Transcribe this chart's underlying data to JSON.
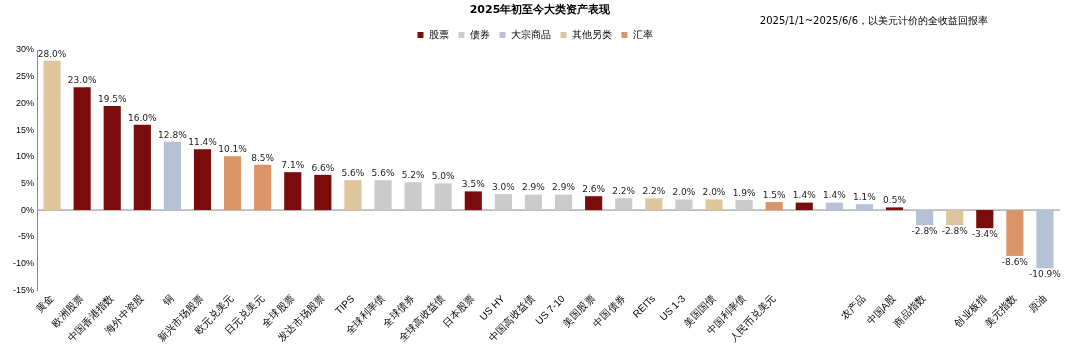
{
  "chart_data": {
    "type": "bar",
    "title": "2025年初至今大类资产表现",
    "subtitle": "2025/1/1~2025/6/6，以美元计价的全收益回报率",
    "categories": [
      "黄金",
      "欧洲股票",
      "中国香港指数",
      "海外中资股",
      "铜",
      "新兴市场股票",
      "欧元兑美元",
      "日元兑美元",
      "全球股票",
      "发达市场股票",
      "TIPS",
      "全球利率债",
      "全球债券",
      "全球高收益债",
      "日本股票",
      "US HY",
      "中国高收益债",
      "US 7-10",
      "美国股票",
      "中国债券",
      "REITs",
      "US 1-3",
      "美国国债",
      "中国利率债",
      "人民币兑美元",
      null,
      null,
      "农产品",
      "中国A股",
      "商品指数",
      null,
      "创业板指",
      "美元指数",
      "原油"
    ],
    "series": [
      {
        "name": "股票",
        "color": "#7a0c0c",
        "values": [
          null,
          23.0,
          19.5,
          16.0,
          null,
          11.4,
          null,
          null,
          7.1,
          6.6,
          null,
          null,
          null,
          null,
          3.5,
          null,
          null,
          null,
          2.6,
          null,
          null,
          null,
          null,
          null,
          null,
          1.4,
          null,
          null,
          0.5,
          null,
          null,
          -3.4,
          null,
          null
        ],
        "value_labels": [
          null,
          "23.0%",
          "19.5%",
          "16.0%",
          null,
          "11.4%",
          null,
          null,
          "7.1%",
          "6.6%",
          null,
          null,
          null,
          null,
          "3.5%",
          null,
          null,
          null,
          "2.6%",
          null,
          null,
          null,
          null,
          null,
          null,
          "1.4%",
          null,
          null,
          "0.5%",
          null,
          null,
          "-3.4%",
          null,
          null
        ]
      },
      {
        "name": "债券",
        "color": "#cbcbcb",
        "values": [
          null,
          null,
          null,
          null,
          null,
          null,
          null,
          null,
          null,
          null,
          null,
          5.6,
          5.2,
          5.0,
          null,
          3.0,
          2.9,
          2.9,
          null,
          2.2,
          null,
          2.0,
          null,
          1.9,
          null,
          null,
          null,
          null,
          null,
          null,
          null,
          null,
          null,
          null
        ],
        "value_labels": [
          null,
          null,
          null,
          null,
          null,
          null,
          null,
          null,
          null,
          null,
          null,
          "5.6%",
          "5.2%",
          "5.0%",
          null,
          "3.0%",
          "2.9%",
          "2.9%",
          null,
          "2.2%",
          null,
          "2.0%",
          null,
          "1.9%",
          null,
          null,
          null,
          null,
          null,
          null,
          null,
          null,
          null,
          null
        ]
      },
      {
        "name": "大宗商品",
        "color": "#b5c1d5",
        "values": [
          null,
          null,
          null,
          null,
          12.8,
          null,
          null,
          null,
          null,
          null,
          null,
          null,
          null,
          null,
          null,
          null,
          null,
          null,
          null,
          null,
          null,
          null,
          null,
          null,
          null,
          null,
          1.4,
          1.1,
          null,
          -2.8,
          null,
          null,
          null,
          -10.9
        ],
        "value_labels": [
          null,
          null,
          null,
          null,
          "12.8%",
          null,
          null,
          null,
          null,
          null,
          null,
          null,
          null,
          null,
          null,
          null,
          null,
          null,
          null,
          null,
          null,
          null,
          null,
          null,
          null,
          null,
          "1.4%",
          "1.1%",
          null,
          "-2.8%",
          null,
          null,
          null,
          "-10.9%"
        ]
      },
      {
        "name": "其他另类",
        "color": "#dfc59c",
        "values": [
          28.0,
          null,
          null,
          null,
          null,
          null,
          null,
          null,
          null,
          null,
          5.6,
          null,
          null,
          null,
          null,
          null,
          null,
          null,
          null,
          null,
          2.2,
          null,
          2.0,
          null,
          null,
          null,
          null,
          null,
          null,
          null,
          -2.8,
          null,
          null,
          null
        ],
        "value_labels": [
          "28.0%",
          null,
          null,
          null,
          null,
          null,
          null,
          null,
          null,
          null,
          "5.6%",
          null,
          null,
          null,
          null,
          null,
          null,
          null,
          null,
          null,
          "2.2%",
          null,
          "2.0%",
          null,
          null,
          null,
          null,
          null,
          null,
          null,
          "-2.8%",
          null,
          null,
          null
        ]
      },
      {
        "name": "汇率",
        "color": "#d9956a",
        "values": [
          null,
          null,
          null,
          null,
          null,
          null,
          10.1,
          8.5,
          null,
          null,
          null,
          null,
          null,
          null,
          null,
          null,
          null,
          null,
          null,
          null,
          null,
          null,
          null,
          null,
          1.5,
          null,
          null,
          null,
          null,
          null,
          null,
          null,
          -8.6,
          null
        ],
        "value_labels": [
          null,
          null,
          null,
          null,
          null,
          null,
          "10.1%",
          "8.5%",
          null,
          null,
          null,
          null,
          null,
          null,
          null,
          null,
          null,
          null,
          null,
          null,
          null,
          null,
          null,
          null,
          "1.5%",
          null,
          null,
          null,
          null,
          null,
          null,
          null,
          "-8.6%",
          null
        ]
      }
    ],
    "ylim": [
      -15,
      30
    ],
    "yticks": [
      {
        "value": -15,
        "label": "-15%"
      },
      {
        "value": -10,
        "label": "-10%"
      },
      {
        "value": -5,
        "label": "-5%"
      },
      {
        "value": 0,
        "label": "0%"
      },
      {
        "value": 5,
        "label": "5%"
      },
      {
        "value": 10,
        "label": "10%"
      },
      {
        "value": 15,
        "label": "15%"
      },
      {
        "value": 20,
        "label": "20%"
      },
      {
        "value": 25,
        "label": "25%"
      },
      {
        "value": 30,
        "label": "30%"
      }
    ],
    "ref_lines": [
      {
        "axis": "y",
        "value": 0,
        "color": "#888888"
      }
    ],
    "legend": "top",
    "grid": false
  }
}
